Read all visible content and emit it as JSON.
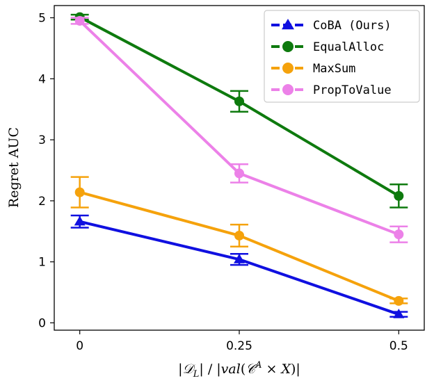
{
  "chart_data": {
    "type": "line",
    "ylabel": "Regret AUC",
    "xlabel_parts": [
      "|",
      "𝒟",
      "L",
      "| / |",
      "val",
      "(",
      "𝒞",
      "A",
      " × ",
      "X",
      ")|"
    ],
    "categories": [
      "0",
      "0.25",
      "0.5"
    ],
    "x": [
      0,
      0.25,
      0.5
    ],
    "xlim": [
      -0.04,
      0.54
    ],
    "ylim": [
      -0.12,
      5.2
    ],
    "yticks": [
      0,
      1,
      2,
      3,
      4,
      5
    ],
    "series": [
      {
        "name": "CoBA (Ours)",
        "color": "#1010e0",
        "marker": "triangle",
        "linestyle": "dashed-legend",
        "values": [
          1.66,
          1.04,
          0.14
        ],
        "err": [
          0.1,
          0.09,
          0.04
        ]
      },
      {
        "name": "EqualAlloc",
        "color": "#0e7a0e",
        "marker": "circle",
        "linestyle": "dashed-legend",
        "values": [
          5.01,
          3.63,
          2.08
        ],
        "err": [
          0.04,
          0.17,
          0.19
        ]
      },
      {
        "name": "MaxSum",
        "color": "#f5a20c",
        "marker": "circle",
        "linestyle": "dashed-legend",
        "values": [
          2.14,
          1.43,
          0.36
        ],
        "err": [
          0.25,
          0.18,
          0.04
        ]
      },
      {
        "name": "PropToValue",
        "color": "#ec81e8",
        "marker": "circle",
        "linestyle": "dashed-legend",
        "values": [
          4.95,
          2.45,
          1.45
        ],
        "err": [
          0.05,
          0.15,
          0.13
        ]
      }
    ],
    "legend": {
      "position": "top-right"
    }
  }
}
